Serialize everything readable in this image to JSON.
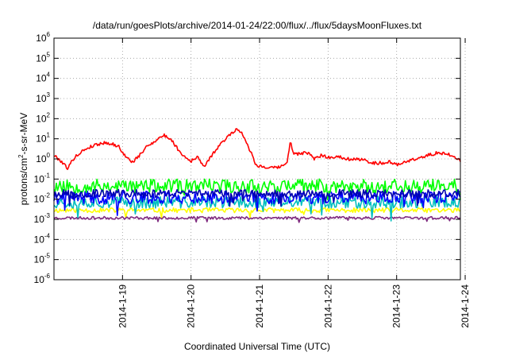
{
  "chart_data": {
    "type": "line",
    "title": "/data/run/goesPlots/archive/2014-01-24/22:00/flux/../flux/5daysMoonFluxes.txt",
    "xlabel": "Coordinated Universal Time (UTC)",
    "ylabel": {
      "prefix": "protons/cm",
      "sup": "2",
      "suffix": "-s-sr-MeV"
    },
    "x_ticks": [
      "2014-1-19",
      "2014-1-20",
      "2014-1-21",
      "2014-1-22",
      "2014-1-23",
      "2014-1-24"
    ],
    "x_domain_days": [
      0,
      5.93
    ],
    "y_scale": "log",
    "ylim": [
      1e-06,
      1000000.0
    ],
    "y_tick_exponents": [
      -6,
      -5,
      -4,
      -3,
      -2,
      -1,
      0,
      1,
      2,
      3,
      4,
      5,
      6
    ],
    "grid": true,
    "legend": "none",
    "series": [
      {
        "color": "#ffff00",
        "kind": "noisy",
        "base_log": -2.55,
        "amp_log": 0.12,
        "seed": 11
      },
      {
        "color": "#7f2a7f",
        "kind": "noisy",
        "base_log": -2.93,
        "amp_log": 0.07,
        "seed": 23
      },
      {
        "color": "#00bfbf",
        "kind": "noisy",
        "base_log": -2.15,
        "amp_log": 0.3,
        "seed": 37
      },
      {
        "color": "#0000ff",
        "kind": "noisy",
        "base_log": -1.92,
        "amp_log": 0.32,
        "seed": 41
      },
      {
        "color": "#00ff00",
        "kind": "noisy",
        "base_log": -1.35,
        "amp_log": 0.35,
        "seed": 53
      },
      {
        "color": "#0000b0",
        "kind": "noisy",
        "base_log": -1.72,
        "amp_log": 0.2,
        "seed": 67
      },
      {
        "color": "#ff0000",
        "kind": "profile",
        "seed": 79,
        "points": [
          [
            0.0,
            1.5
          ],
          [
            0.1,
            0.8
          ],
          [
            0.2,
            0.35
          ],
          [
            0.3,
            1.2
          ],
          [
            0.45,
            3.0
          ],
          [
            0.6,
            5.0
          ],
          [
            0.75,
            6.5
          ],
          [
            0.85,
            5.5
          ],
          [
            0.95,
            4.0
          ],
          [
            1.05,
            1.2
          ],
          [
            1.15,
            0.7
          ],
          [
            1.25,
            1.5
          ],
          [
            1.35,
            4.0
          ],
          [
            1.5,
            9.0
          ],
          [
            1.6,
            15.0
          ],
          [
            1.7,
            10.0
          ],
          [
            1.85,
            2.0
          ],
          [
            1.95,
            1.0
          ],
          [
            2.0,
            0.8
          ],
          [
            2.1,
            1.2
          ],
          [
            2.2,
            0.4
          ],
          [
            2.3,
            1.5
          ],
          [
            2.4,
            4.0
          ],
          [
            2.48,
            8.0
          ],
          [
            2.55,
            15.0
          ],
          [
            2.65,
            28.0
          ],
          [
            2.72,
            25.0
          ],
          [
            2.8,
            8.0
          ],
          [
            2.9,
            1.3
          ],
          [
            2.95,
            0.5
          ],
          [
            3.05,
            0.4
          ],
          [
            3.2,
            0.35
          ],
          [
            3.3,
            0.4
          ],
          [
            3.4,
            0.6
          ],
          [
            3.45,
            9.0
          ],
          [
            3.48,
            2.0
          ],
          [
            3.55,
            1.8
          ],
          [
            3.7,
            2.0
          ],
          [
            3.8,
            1.0
          ],
          [
            3.9,
            1.5
          ],
          [
            4.0,
            1.2
          ],
          [
            4.15,
            1.3
          ],
          [
            4.3,
            1.0
          ],
          [
            4.5,
            0.9
          ],
          [
            4.7,
            0.6
          ],
          [
            4.9,
            0.7
          ],
          [
            5.0,
            0.5
          ],
          [
            5.15,
            0.8
          ],
          [
            5.3,
            1.0
          ],
          [
            5.45,
            1.5
          ],
          [
            5.6,
            2.0
          ],
          [
            5.75,
            1.8
          ],
          [
            5.93,
            0.8
          ]
        ]
      }
    ]
  }
}
